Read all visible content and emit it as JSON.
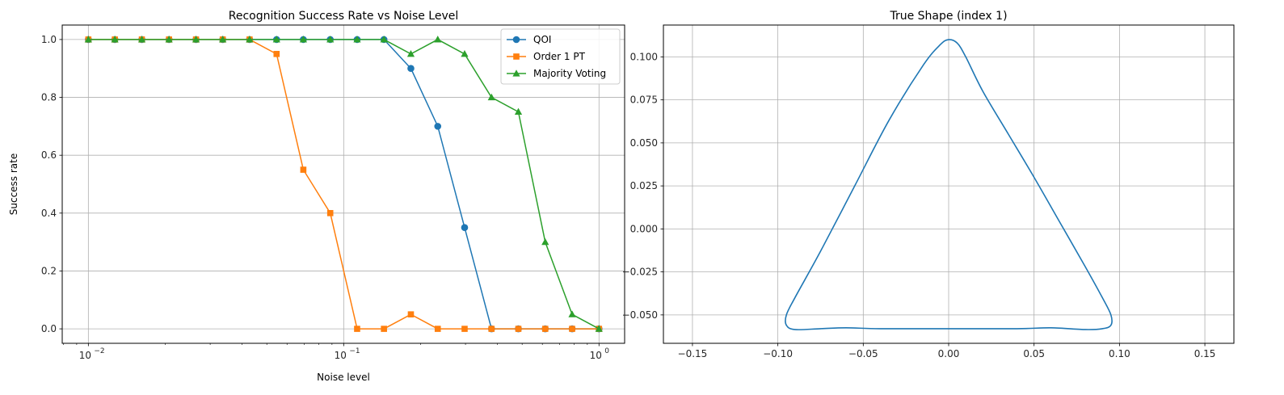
{
  "chart_data": [
    {
      "type": "line",
      "title": "Recognition Success Rate vs Noise Level",
      "xlabel": "Noise level",
      "ylabel": "Success rate",
      "xscale": "log",
      "xlim": [
        0.0079,
        1.26
      ],
      "ylim": [
        -0.05,
        1.05
      ],
      "grid": true,
      "legend": "top-right",
      "x": [
        0.01,
        0.0127,
        0.0162,
        0.0207,
        0.0264,
        0.0336,
        0.0428,
        0.0546,
        0.0695,
        0.0886,
        0.1129,
        0.1438,
        0.1833,
        0.2336,
        0.2976,
        0.3793,
        0.4833,
        0.6158,
        0.7848,
        1.0
      ],
      "xticks": [
        0.01,
        0.1,
        1.0
      ],
      "xtick_labels": [
        "10",
        "10",
        "10"
      ],
      "xtick_exponents": [
        "−2",
        "−1",
        "0"
      ],
      "yticks": [
        0.0,
        0.2,
        0.4,
        0.6,
        0.8,
        1.0
      ],
      "ytick_labels": [
        "0.0",
        "0.2",
        "0.4",
        "0.6",
        "0.8",
        "1.0"
      ],
      "series": [
        {
          "name": "QOI",
          "color": "#1f77b4",
          "marker": "circle",
          "values": [
            1,
            1,
            1,
            1,
            1,
            1,
            1,
            1,
            1,
            1,
            1,
            1,
            0.9,
            0.7,
            0.35,
            0,
            0,
            0,
            0,
            0
          ]
        },
        {
          "name": "Order 1 PT",
          "color": "#ff7f0e",
          "marker": "square",
          "values": [
            1,
            1,
            1,
            1,
            1,
            1,
            1,
            0.95,
            0.55,
            0.4,
            0,
            0,
            0.05,
            0,
            0,
            0,
            0,
            0,
            0,
            0
          ]
        },
        {
          "name": "Majority Voting",
          "color": "#2ca02c",
          "marker": "triangle",
          "values": [
            1,
            1,
            1,
            1,
            1,
            1,
            1,
            1,
            1,
            1,
            1,
            1,
            0.95,
            1,
            0.95,
            0.8,
            0.75,
            0.3,
            0.05,
            0
          ]
        }
      ]
    },
    {
      "type": "line",
      "title": "True Shape (index 1)",
      "xlabel": "",
      "ylabel": "",
      "xlim": [
        -0.167,
        0.167
      ],
      "ylim": [
        -0.0665,
        0.1185
      ],
      "grid": true,
      "xticks": [
        -0.15,
        -0.1,
        -0.05,
        0.0,
        0.05,
        0.1,
        0.15
      ],
      "xtick_labels": [
        "−0.15",
        "−0.10",
        "−0.05",
        "0.00",
        "0.05",
        "0.10",
        "0.15"
      ],
      "yticks": [
        -0.05,
        -0.025,
        0.0,
        0.025,
        0.05,
        0.075,
        0.1
      ],
      "ytick_labels": [
        "−0.050",
        "−0.025",
        "0.000",
        "0.025",
        "0.050",
        "0.075",
        "0.100"
      ],
      "series": [
        {
          "color": "#1f77b4",
          "x": [
            0.0,
            0.005,
            0.01,
            0.02,
            0.035,
            0.05,
            0.065,
            0.08,
            0.09,
            0.095,
            0.095,
            0.09,
            0.08,
            0.06,
            0.04,
            0.0,
            -0.04,
            -0.06,
            -0.075,
            -0.09,
            -0.095,
            -0.095,
            -0.09,
            -0.075,
            -0.055,
            -0.035,
            -0.015,
            -0.005,
            0.0
          ],
          "y": [
            0.11,
            0.108,
            0.1,
            0.08,
            0.055,
            0.03,
            0.004,
            -0.022,
            -0.04,
            -0.05,
            -0.056,
            -0.058,
            -0.0585,
            -0.0575,
            -0.058,
            -0.058,
            -0.058,
            -0.0575,
            -0.058,
            -0.0585,
            -0.056,
            -0.05,
            -0.04,
            -0.013,
            0.025,
            0.063,
            0.095,
            0.107,
            0.11
          ]
        }
      ]
    }
  ]
}
